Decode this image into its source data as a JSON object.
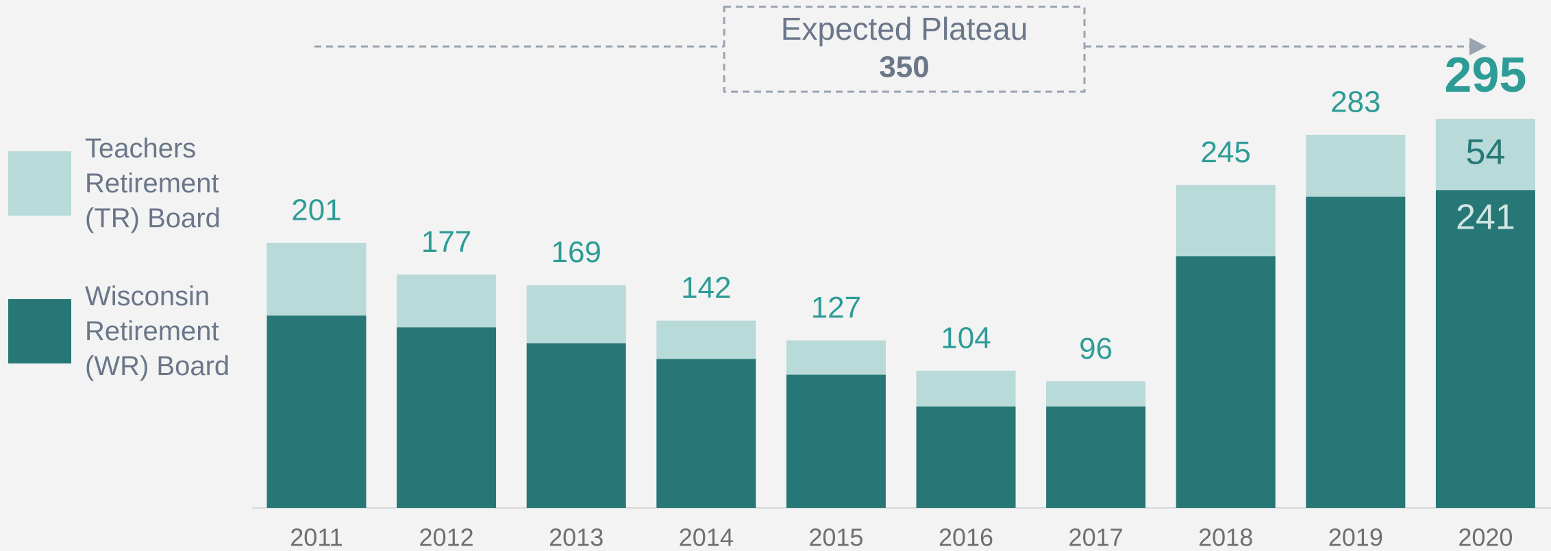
{
  "chart_data": {
    "type": "stacked_bar",
    "categories": [
      "2011",
      "2012",
      "2013",
      "2014",
      "2015",
      "2016",
      "2017",
      "2018",
      "2019",
      "2020"
    ],
    "series": [
      {
        "name": "Wisconsin Retirement (WR) Board",
        "color": "#267776",
        "values": [
          146,
          137,
          125,
          113,
          101,
          77,
          77,
          191,
          236,
          241
        ],
        "value_labels": [
          null,
          null,
          null,
          null,
          null,
          null,
          null,
          null,
          null,
          "241"
        ],
        "label_color": "#cfe6e4"
      },
      {
        "name": "Teachers Retirement (TR) Board",
        "color": "#b8dad9",
        "values": [
          55,
          40,
          44,
          29,
          26,
          27,
          19,
          54,
          47,
          54
        ],
        "value_labels": [
          null,
          null,
          null,
          null,
          null,
          null,
          null,
          null,
          null,
          "54"
        ],
        "label_color": "#267776"
      }
    ],
    "totals": [
      201,
      177,
      169,
      142,
      127,
      104,
      96,
      245,
      283,
      295
    ],
    "total_color": "#2e9c96",
    "annotation": {
      "text": "Expected Plateau",
      "value": 350
    },
    "ylim": [
      0,
      350
    ],
    "legend": "left"
  }
}
